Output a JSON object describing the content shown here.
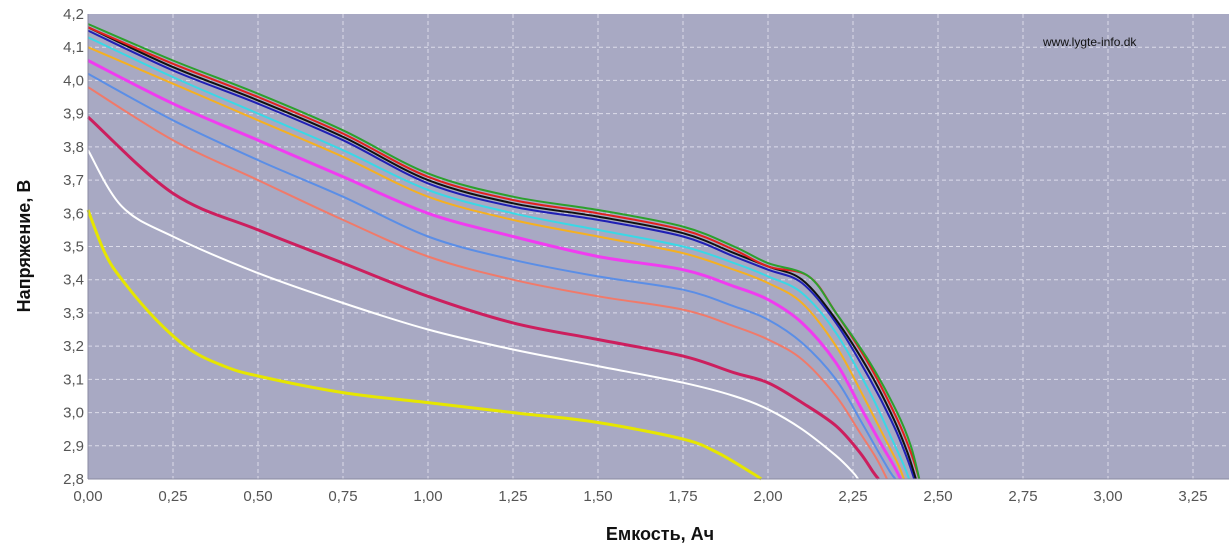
{
  "chart_data": {
    "type": "line",
    "title": "",
    "xlabel": "Емкость, Ач",
    "ylabel": "Напряжение, В",
    "xlim": [
      0,
      3.4
    ],
    "ylim": [
      2.8,
      4.2
    ],
    "x_ticks": [
      "0,00",
      "0,25",
      "0,50",
      "0,75",
      "1,00",
      "1,25",
      "1,50",
      "1,75",
      "2,00",
      "2,25",
      "2,50",
      "2,75",
      "3,00",
      "3,25"
    ],
    "y_ticks": [
      "2,8",
      "2,9",
      "3,0",
      "3,1",
      "3,2",
      "3,3",
      "3,4",
      "3,5",
      "3,6",
      "3,7",
      "3,8",
      "3,9",
      "4,0",
      "4,1",
      "4,2"
    ],
    "grid": true,
    "plot_background": "#a8a9c3",
    "annotation": "www.lygte-info.dk",
    "series": [
      {
        "color": "#2ca02c",
        "points": [
          [
            0,
            4.17
          ],
          [
            0.25,
            4.06
          ],
          [
            0.5,
            3.96
          ],
          [
            0.75,
            3.85
          ],
          [
            1.0,
            3.72
          ],
          [
            1.25,
            3.65
          ],
          [
            1.5,
            3.61
          ],
          [
            1.75,
            3.56
          ],
          [
            1.9,
            3.5
          ],
          [
            2.0,
            3.45
          ],
          [
            2.12,
            3.41
          ],
          [
            2.2,
            3.3
          ],
          [
            2.3,
            3.15
          ],
          [
            2.38,
            3.0
          ],
          [
            2.42,
            2.9
          ],
          [
            2.445,
            2.8
          ]
        ]
      },
      {
        "color": "#e0201e",
        "points": [
          [
            0,
            4.16
          ],
          [
            0.25,
            4.05
          ],
          [
            0.5,
            3.95
          ],
          [
            0.75,
            3.84
          ],
          [
            1.0,
            3.71
          ],
          [
            1.25,
            3.64
          ],
          [
            1.5,
            3.6
          ],
          [
            1.75,
            3.55
          ],
          [
            1.9,
            3.49
          ],
          [
            2.0,
            3.44
          ],
          [
            2.12,
            3.41
          ],
          [
            2.2,
            3.3
          ],
          [
            2.3,
            3.14
          ],
          [
            2.38,
            2.98
          ],
          [
            2.42,
            2.88
          ],
          [
            2.445,
            2.8
          ]
        ]
      },
      {
        "color": "#111111",
        "points": [
          [
            0,
            4.16
          ],
          [
            0.25,
            4.04
          ],
          [
            0.5,
            3.94
          ],
          [
            0.75,
            3.83
          ],
          [
            1.0,
            3.7
          ],
          [
            1.25,
            3.63
          ],
          [
            1.5,
            3.59
          ],
          [
            1.75,
            3.54
          ],
          [
            1.9,
            3.48
          ],
          [
            2.0,
            3.44
          ],
          [
            2.1,
            3.4
          ],
          [
            2.2,
            3.28
          ],
          [
            2.3,
            3.12
          ],
          [
            2.37,
            2.98
          ],
          [
            2.41,
            2.88
          ],
          [
            2.435,
            2.8
          ]
        ]
      },
      {
        "color": "#1f1fb4",
        "points": [
          [
            0,
            4.15
          ],
          [
            0.25,
            4.03
          ],
          [
            0.5,
            3.93
          ],
          [
            0.75,
            3.82
          ],
          [
            1.0,
            3.69
          ],
          [
            1.25,
            3.62
          ],
          [
            1.5,
            3.58
          ],
          [
            1.75,
            3.53
          ],
          [
            1.9,
            3.47
          ],
          [
            2.0,
            3.43
          ],
          [
            2.1,
            3.39
          ],
          [
            2.2,
            3.27
          ],
          [
            2.3,
            3.1
          ],
          [
            2.37,
            2.96
          ],
          [
            2.41,
            2.86
          ],
          [
            2.43,
            2.8
          ]
        ]
      },
      {
        "color": "#3ad8e6",
        "points": [
          [
            0,
            4.13
          ],
          [
            0.25,
            4.01
          ],
          [
            0.5,
            3.9
          ],
          [
            0.75,
            3.79
          ],
          [
            1.0,
            3.67
          ],
          [
            1.25,
            3.6
          ],
          [
            1.5,
            3.55
          ],
          [
            1.75,
            3.5
          ],
          [
            1.9,
            3.45
          ],
          [
            2.0,
            3.41
          ],
          [
            2.1,
            3.36
          ],
          [
            2.2,
            3.24
          ],
          [
            2.3,
            3.06
          ],
          [
            2.36,
            2.93
          ],
          [
            2.4,
            2.84
          ],
          [
            2.415,
            2.8
          ]
        ]
      },
      {
        "color": "#f5b021",
        "points": [
          [
            0,
            4.1
          ],
          [
            0.25,
            3.99
          ],
          [
            0.5,
            3.88
          ],
          [
            0.75,
            3.77
          ],
          [
            1.0,
            3.65
          ],
          [
            1.25,
            3.58
          ],
          [
            1.5,
            3.53
          ],
          [
            1.75,
            3.48
          ],
          [
            1.9,
            3.43
          ],
          [
            2.0,
            3.39
          ],
          [
            2.1,
            3.33
          ],
          [
            2.2,
            3.2
          ],
          [
            2.28,
            3.05
          ],
          [
            2.34,
            2.93
          ],
          [
            2.38,
            2.85
          ],
          [
            2.4,
            2.8
          ]
        ]
      },
      {
        "color": "#f03cf0",
        "points": [
          [
            0,
            4.06
          ],
          [
            0.25,
            3.93
          ],
          [
            0.5,
            3.82
          ],
          [
            0.75,
            3.71
          ],
          [
            1.0,
            3.6
          ],
          [
            1.25,
            3.53
          ],
          [
            1.5,
            3.47
          ],
          [
            1.75,
            3.43
          ],
          [
            1.9,
            3.38
          ],
          [
            2.0,
            3.34
          ],
          [
            2.1,
            3.27
          ],
          [
            2.2,
            3.15
          ],
          [
            2.27,
            3.02
          ],
          [
            2.33,
            2.91
          ],
          [
            2.37,
            2.84
          ],
          [
            2.39,
            2.8
          ]
        ]
      },
      {
        "color": "#5b8ee6",
        "points": [
          [
            0,
            4.02
          ],
          [
            0.25,
            3.88
          ],
          [
            0.5,
            3.76
          ],
          [
            0.75,
            3.65
          ],
          [
            1.0,
            3.53
          ],
          [
            1.25,
            3.46
          ],
          [
            1.5,
            3.41
          ],
          [
            1.75,
            3.37
          ],
          [
            1.9,
            3.32
          ],
          [
            2.0,
            3.28
          ],
          [
            2.1,
            3.21
          ],
          [
            2.2,
            3.1
          ],
          [
            2.27,
            2.98
          ],
          [
            2.32,
            2.89
          ],
          [
            2.36,
            2.82
          ],
          [
            2.375,
            2.8
          ]
        ]
      },
      {
        "color": "#f07a6a",
        "points": [
          [
            0,
            3.98
          ],
          [
            0.25,
            3.82
          ],
          [
            0.5,
            3.7
          ],
          [
            0.75,
            3.58
          ],
          [
            1.0,
            3.47
          ],
          [
            1.25,
            3.4
          ],
          [
            1.5,
            3.35
          ],
          [
            1.75,
            3.31
          ],
          [
            1.9,
            3.26
          ],
          [
            2.0,
            3.22
          ],
          [
            2.1,
            3.16
          ],
          [
            2.2,
            3.05
          ],
          [
            2.27,
            2.94
          ],
          [
            2.32,
            2.86
          ],
          [
            2.35,
            2.8
          ]
        ]
      },
      {
        "color": "#cc1f5e",
        "points": [
          [
            0,
            3.89
          ],
          [
            0.25,
            3.66
          ],
          [
            0.5,
            3.55
          ],
          [
            0.75,
            3.45
          ],
          [
            1.0,
            3.35
          ],
          [
            1.25,
            3.27
          ],
          [
            1.5,
            3.22
          ],
          [
            1.75,
            3.17
          ],
          [
            1.9,
            3.12
          ],
          [
            2.0,
            3.09
          ],
          [
            2.1,
            3.03
          ],
          [
            2.2,
            2.96
          ],
          [
            2.27,
            2.88
          ],
          [
            2.31,
            2.82
          ],
          [
            2.325,
            2.8
          ]
        ]
      },
      {
        "color": "#ffffff",
        "points": [
          [
            0,
            3.79
          ],
          [
            0.1,
            3.62
          ],
          [
            0.25,
            3.53
          ],
          [
            0.5,
            3.42
          ],
          [
            0.75,
            3.33
          ],
          [
            1.0,
            3.25
          ],
          [
            1.25,
            3.19
          ],
          [
            1.5,
            3.14
          ],
          [
            1.75,
            3.09
          ],
          [
            1.9,
            3.05
          ],
          [
            2.0,
            3.01
          ],
          [
            2.1,
            2.95
          ],
          [
            2.2,
            2.87
          ],
          [
            2.25,
            2.82
          ],
          [
            2.265,
            2.8
          ]
        ]
      },
      {
        "color": "#e6e600",
        "points": [
          [
            0,
            3.61
          ],
          [
            0.05,
            3.48
          ],
          [
            0.1,
            3.4
          ],
          [
            0.2,
            3.28
          ],
          [
            0.3,
            3.19
          ],
          [
            0.4,
            3.14
          ],
          [
            0.5,
            3.11
          ],
          [
            0.75,
            3.06
          ],
          [
            1.0,
            3.03
          ],
          [
            1.25,
            3.0
          ],
          [
            1.5,
            2.97
          ],
          [
            1.75,
            2.92
          ],
          [
            1.85,
            2.88
          ],
          [
            1.95,
            2.82
          ],
          [
            1.98,
            2.8
          ]
        ]
      }
    ]
  }
}
